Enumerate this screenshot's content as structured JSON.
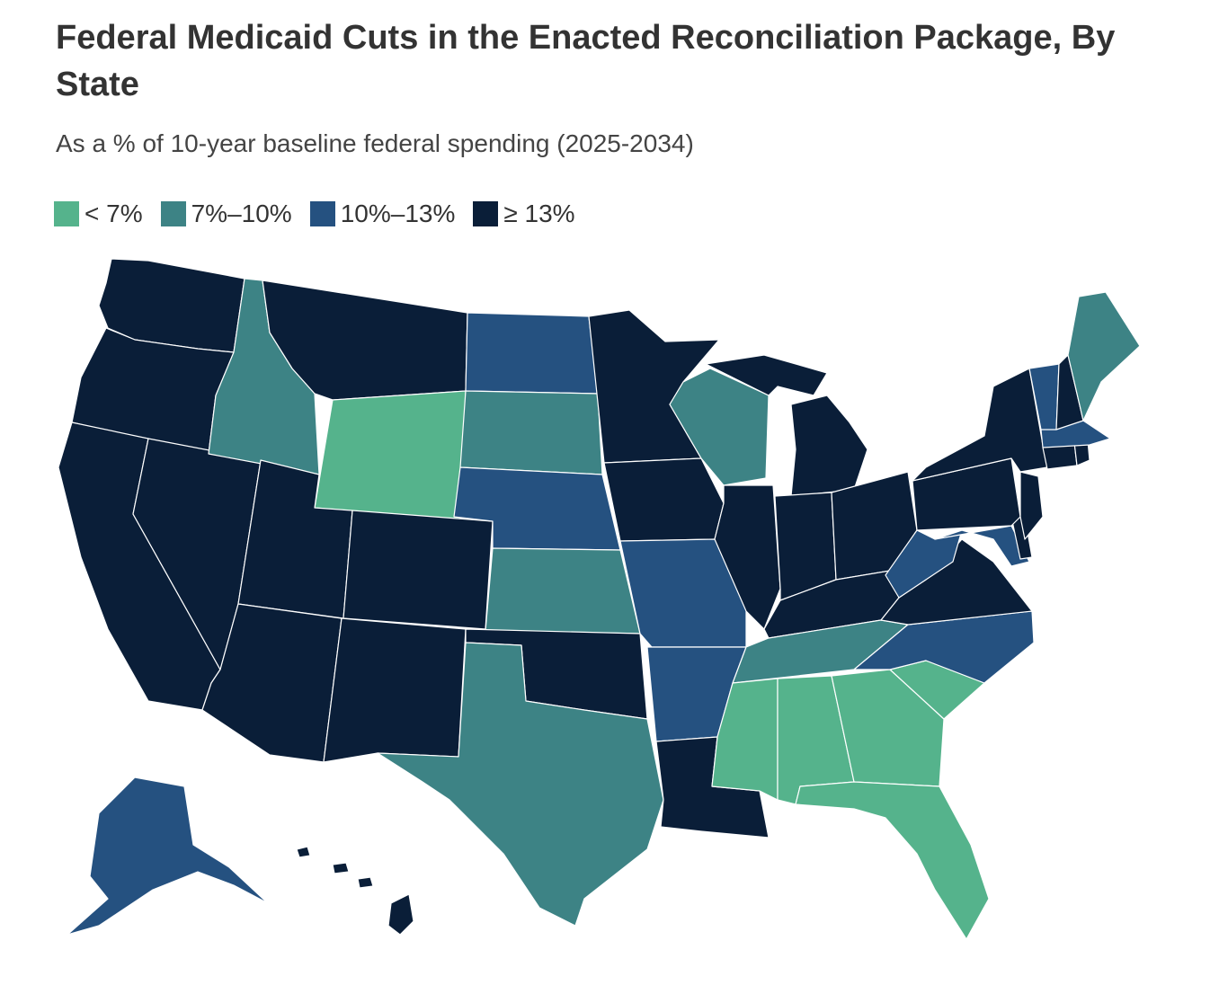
{
  "header": {
    "title": "Federal Medicaid Cuts in the Enacted Reconciliation Package, By State",
    "subtitle": "As a % of 10-year baseline federal spending (2025-2034)"
  },
  "legend": {
    "items": [
      {
        "label": "< 7%",
        "color": "#55b38c"
      },
      {
        "label": "7%–10%",
        "color": "#3d8385"
      },
      {
        "label": "10%–13%",
        "color": "#255180"
      },
      {
        "label": "≥ 13%",
        "color": "#0a1e38"
      }
    ]
  },
  "chart_data": {
    "type": "choropleth",
    "bins": [
      "< 7%",
      "7%–10%",
      "10%–13%",
      "≥ 13%"
    ],
    "states": [
      {
        "state": "WA",
        "bin": 3
      },
      {
        "state": "OR",
        "bin": 3
      },
      {
        "state": "CA",
        "bin": 3
      },
      {
        "state": "NV",
        "bin": 3
      },
      {
        "state": "ID",
        "bin": 1
      },
      {
        "state": "MT",
        "bin": 3
      },
      {
        "state": "WY",
        "bin": 0
      },
      {
        "state": "UT",
        "bin": 3
      },
      {
        "state": "AZ",
        "bin": 3
      },
      {
        "state": "CO",
        "bin": 3
      },
      {
        "state": "NM",
        "bin": 3
      },
      {
        "state": "ND",
        "bin": 2
      },
      {
        "state": "SD",
        "bin": 1
      },
      {
        "state": "NE",
        "bin": 2
      },
      {
        "state": "KS",
        "bin": 1
      },
      {
        "state": "OK",
        "bin": 3
      },
      {
        "state": "TX",
        "bin": 1
      },
      {
        "state": "MN",
        "bin": 3
      },
      {
        "state": "IA",
        "bin": 3
      },
      {
        "state": "MO",
        "bin": 2
      },
      {
        "state": "AR",
        "bin": 2
      },
      {
        "state": "LA",
        "bin": 3
      },
      {
        "state": "WI",
        "bin": 1
      },
      {
        "state": "IL",
        "bin": 3
      },
      {
        "state": "MI",
        "bin": 3
      },
      {
        "state": "IN",
        "bin": 3
      },
      {
        "state": "OH",
        "bin": 3
      },
      {
        "state": "KY",
        "bin": 3
      },
      {
        "state": "TN",
        "bin": 1
      },
      {
        "state": "MS",
        "bin": 0
      },
      {
        "state": "AL",
        "bin": 0
      },
      {
        "state": "GA",
        "bin": 0
      },
      {
        "state": "FL",
        "bin": 0
      },
      {
        "state": "SC",
        "bin": 0
      },
      {
        "state": "NC",
        "bin": 2
      },
      {
        "state": "VA",
        "bin": 3
      },
      {
        "state": "WV",
        "bin": 2
      },
      {
        "state": "MD",
        "bin": 2
      },
      {
        "state": "DE",
        "bin": 3
      },
      {
        "state": "PA",
        "bin": 3
      },
      {
        "state": "NJ",
        "bin": 3
      },
      {
        "state": "NY",
        "bin": 3
      },
      {
        "state": "CT",
        "bin": 3
      },
      {
        "state": "RI",
        "bin": 3
      },
      {
        "state": "MA",
        "bin": 2
      },
      {
        "state": "VT",
        "bin": 2
      },
      {
        "state": "NH",
        "bin": 3
      },
      {
        "state": "ME",
        "bin": 1
      },
      {
        "state": "AK",
        "bin": 2
      },
      {
        "state": "HI",
        "bin": 3
      }
    ]
  }
}
